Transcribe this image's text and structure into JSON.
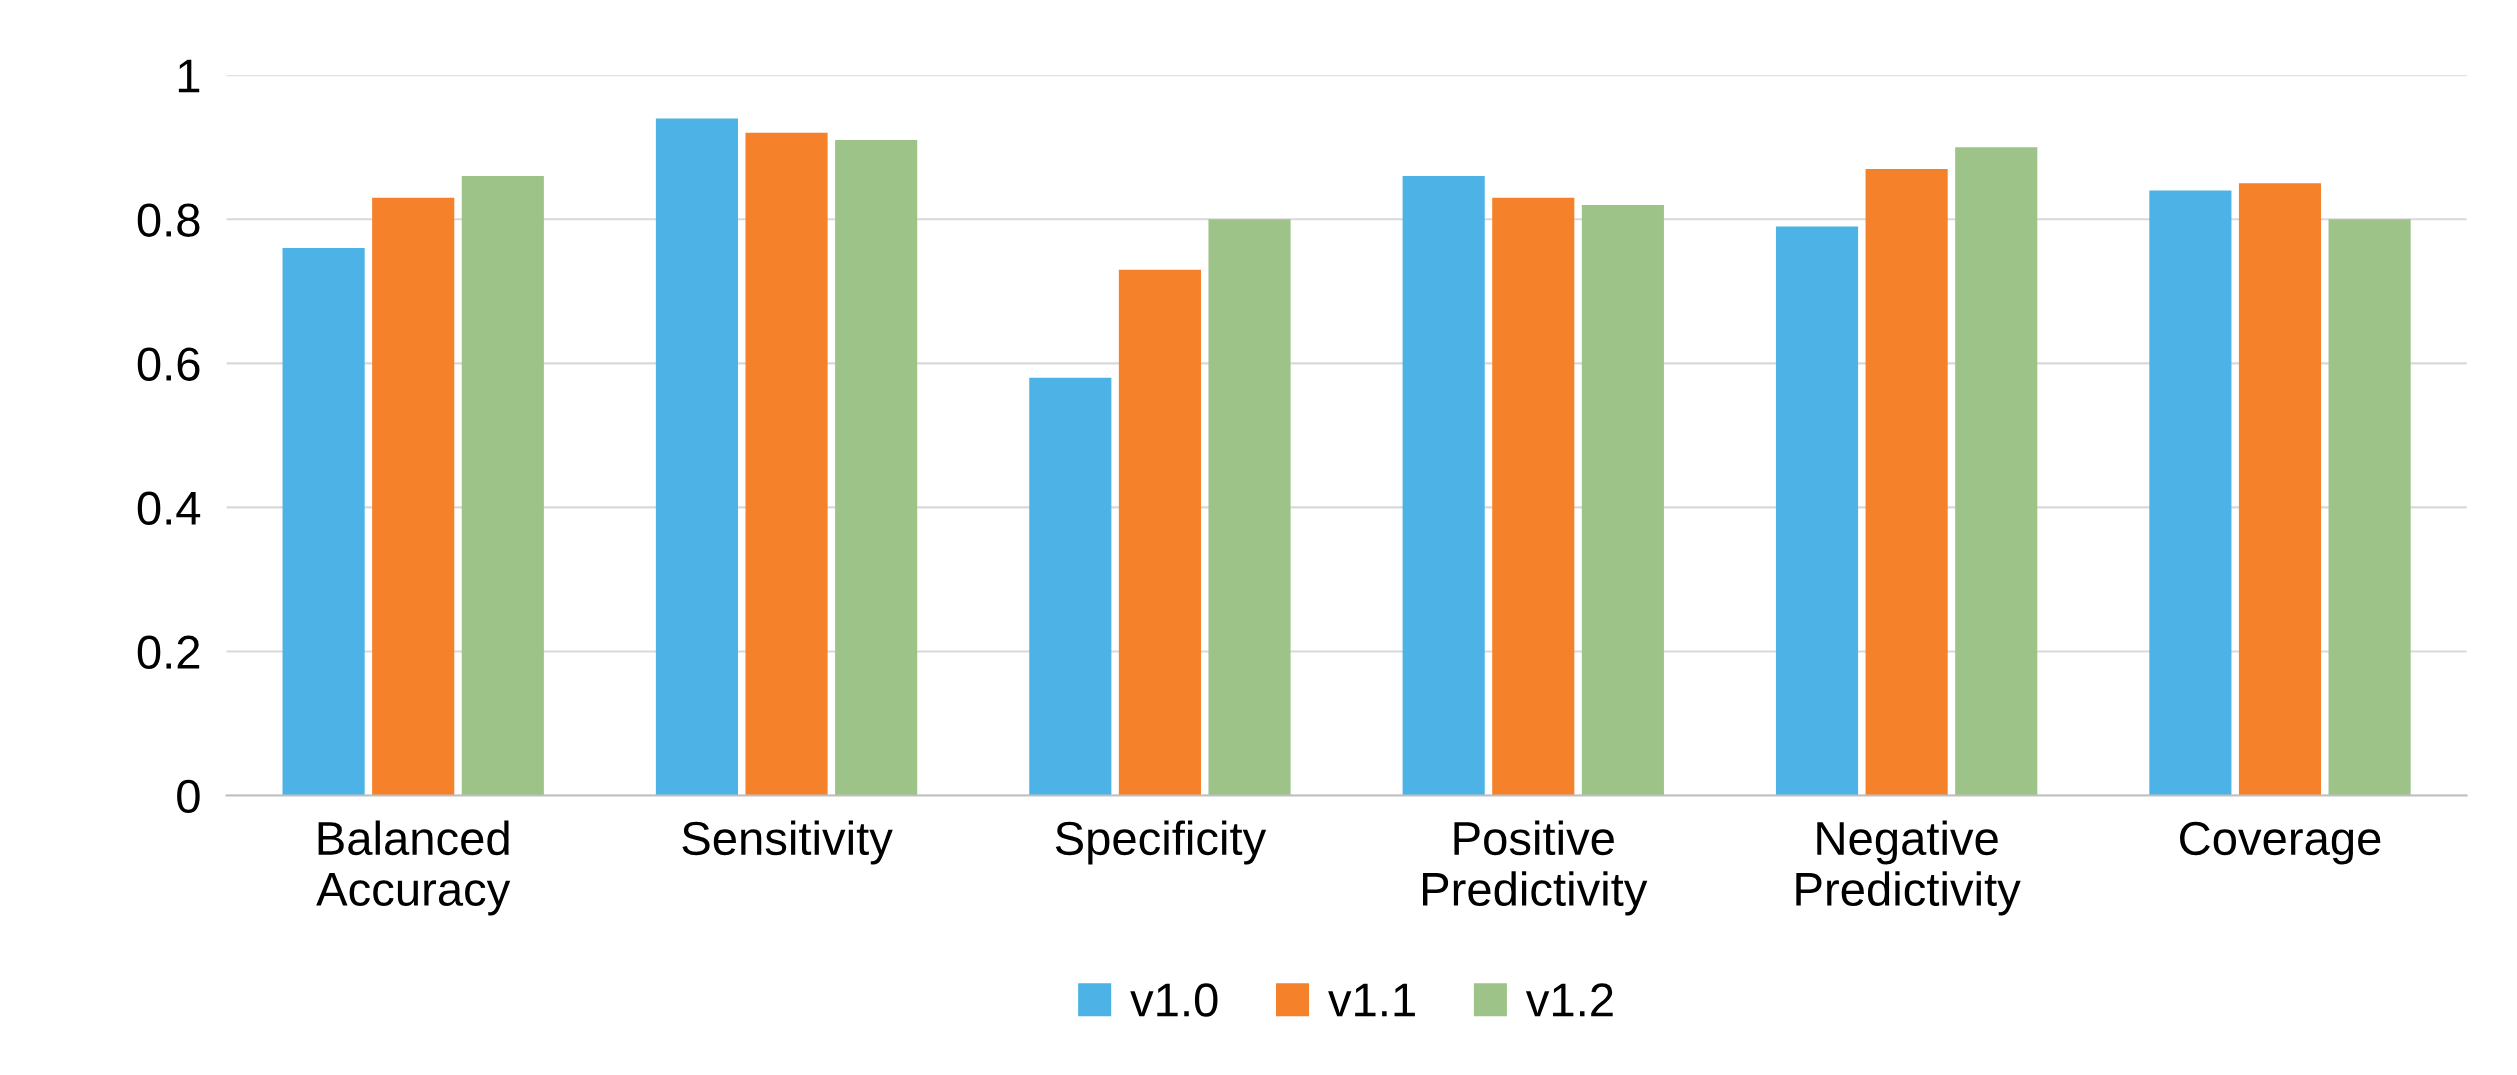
{
  "chart_data": {
    "type": "bar",
    "categories": [
      "Balanced\nAccuracy",
      "Sensitivity",
      "Specificity",
      "Positive\nPredictivity",
      "Negative\nPredictivity",
      "Coverage"
    ],
    "series": [
      {
        "name": "v1.0",
        "color": "#4db3e6",
        "values": [
          0.76,
          0.94,
          0.58,
          0.86,
          0.79,
          0.84
        ]
      },
      {
        "name": "v1.1",
        "color": "#f5812a",
        "values": [
          0.83,
          0.92,
          0.73,
          0.83,
          0.87,
          0.85
        ]
      },
      {
        "name": "v1.2",
        "color": "#9dc389",
        "values": [
          0.86,
          0.91,
          0.8,
          0.82,
          0.9,
          0.8
        ]
      }
    ],
    "ylim": [
      0,
      1
    ],
    "yticks": [
      0,
      0.2,
      0.4,
      0.6,
      0.8,
      1
    ],
    "grid": "y",
    "legend": "bottom"
  }
}
